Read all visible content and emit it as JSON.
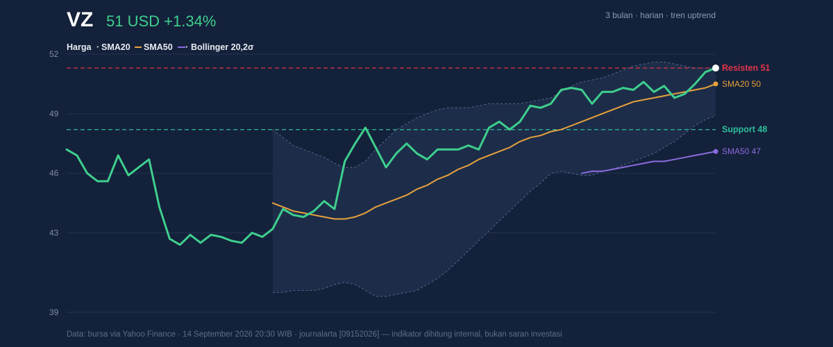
{
  "header": {
    "ticker": "VZ",
    "price_text": "51 USD +1.34%",
    "period": "3 bulan · harian · tren uptrend"
  },
  "legend": {
    "price": "Harga",
    "sma20": "SMA20",
    "sma50": "SMA50",
    "bollinger": "Bollinger 20,2σ"
  },
  "source": "Data: bursa via Yahoo Finance · 14 September 2026 20:30 WIB · journalarta [09152026] — indikator dihitung internal, bukan saran investasi",
  "colors": {
    "background": "#14213a",
    "price": "#3ecf8e",
    "sma20": "#e8a23d",
    "sma50": "#8b6be0",
    "resistance": "#e0344a",
    "support": "#2bbf9b",
    "band_fill": "#1e2e4a",
    "band_edge": "#56678a",
    "grid": "#223252"
  },
  "chart_data": {
    "type": "line",
    "x_index": [
      0,
      1,
      2,
      3,
      4,
      5,
      6,
      7,
      8,
      9,
      10,
      11,
      12,
      13,
      14,
      15,
      16,
      17,
      18,
      19,
      20,
      21,
      22,
      23,
      24,
      25,
      26,
      27,
      28,
      29,
      30,
      31,
      32,
      33,
      34,
      35,
      36,
      37,
      38,
      39,
      40,
      41,
      42,
      43,
      44,
      45,
      46,
      47,
      48,
      49,
      50,
      51,
      52,
      53,
      54,
      55,
      56,
      57,
      58,
      59,
      60,
      61,
      62,
      63
    ],
    "ylim": [
      39,
      52
    ],
    "yticks": [
      39,
      43,
      46,
      49,
      52
    ],
    "series": [
      {
        "name": "Harga",
        "values": [
          47.2,
          46.9,
          46.0,
          45.6,
          45.6,
          46.9,
          45.9,
          46.3,
          46.7,
          44.3,
          42.7,
          42.4,
          42.9,
          42.5,
          42.9,
          42.8,
          42.6,
          42.5,
          43.0,
          42.8,
          43.2,
          44.2,
          43.9,
          43.8,
          44.1,
          44.6,
          44.2,
          46.6,
          47.5,
          48.3,
          47.3,
          46.3,
          47.0,
          47.5,
          47.0,
          46.7,
          47.2,
          47.2,
          47.2,
          47.4,
          47.2,
          48.3,
          48.6,
          48.2,
          48.6,
          49.4,
          49.3,
          49.5,
          50.2,
          50.3,
          50.2,
          49.5,
          50.1,
          50.1,
          50.3,
          50.2,
          50.6,
          50.1,
          50.4,
          49.8,
          50.0,
          50.5,
          51.1,
          51.3
        ]
      },
      {
        "name": "SMA20",
        "values": [
          null,
          null,
          null,
          null,
          null,
          null,
          null,
          null,
          null,
          null,
          null,
          null,
          null,
          null,
          null,
          null,
          null,
          null,
          null,
          null,
          44.5,
          44.3,
          44.1,
          44.0,
          43.9,
          43.8,
          43.7,
          43.7,
          43.8,
          44.0,
          44.3,
          44.5,
          44.7,
          44.9,
          45.2,
          45.4,
          45.7,
          45.9,
          46.2,
          46.4,
          46.7,
          46.9,
          47.1,
          47.3,
          47.6,
          47.8,
          47.9,
          48.1,
          48.2,
          48.4,
          48.6,
          48.8,
          49.0,
          49.2,
          49.4,
          49.6,
          49.7,
          49.8,
          49.9,
          50.0,
          50.1,
          50.2,
          50.3,
          50.5
        ]
      },
      {
        "name": "SMA50",
        "values": [
          null,
          null,
          null,
          null,
          null,
          null,
          null,
          null,
          null,
          null,
          null,
          null,
          null,
          null,
          null,
          null,
          null,
          null,
          null,
          null,
          null,
          null,
          null,
          null,
          null,
          null,
          null,
          null,
          null,
          null,
          null,
          null,
          null,
          null,
          null,
          null,
          null,
          null,
          null,
          null,
          null,
          null,
          null,
          null,
          null,
          null,
          null,
          null,
          null,
          null,
          46.0,
          46.1,
          46.1,
          46.2,
          46.3,
          46.4,
          46.5,
          46.6,
          46.6,
          46.7,
          46.8,
          46.9,
          47.0,
          47.1
        ]
      },
      {
        "name": "Bollinger 20,2σ",
        "upper": [
          null,
          null,
          null,
          null,
          null,
          null,
          null,
          null,
          null,
          null,
          null,
          null,
          null,
          null,
          null,
          null,
          null,
          null,
          null,
          null,
          48.2,
          47.8,
          47.4,
          47.2,
          47.0,
          46.8,
          46.5,
          46.3,
          46.3,
          46.6,
          47.2,
          47.7,
          48.2,
          48.5,
          48.8,
          49.0,
          49.2,
          49.3,
          49.3,
          49.3,
          49.4,
          49.5,
          49.5,
          49.5,
          49.5,
          49.6,
          49.7,
          49.8,
          50.1,
          50.4,
          50.6,
          50.7,
          50.8,
          51.0,
          51.2,
          51.4,
          51.5,
          51.6,
          51.6,
          51.5,
          51.4,
          51.3,
          51.3,
          51.3
        ],
        "lower": [
          null,
          null,
          null,
          null,
          null,
          null,
          null,
          null,
          null,
          null,
          null,
          null,
          null,
          null,
          null,
          null,
          null,
          null,
          null,
          null,
          40.0,
          40.0,
          40.1,
          40.1,
          40.1,
          40.2,
          40.4,
          40.5,
          40.4,
          40.1,
          39.8,
          39.8,
          39.9,
          40.0,
          40.1,
          40.4,
          40.7,
          41.1,
          41.6,
          42.1,
          42.6,
          43.1,
          43.6,
          44.1,
          44.6,
          45.1,
          45.5,
          46.0,
          46.1,
          46.0,
          45.9,
          45.9,
          46.1,
          46.2,
          46.4,
          46.6,
          46.8,
          47.0,
          47.3,
          47.6,
          48.0,
          48.4,
          48.7,
          48.9
        ]
      }
    ],
    "levels": [
      {
        "name": "Resisten",
        "value": 51.3,
        "label": "Resisten 51",
        "color": "#e0344a"
      },
      {
        "name": "Support",
        "value": 48.2,
        "label": "Support 48",
        "color": "#2bbf9b"
      }
    ],
    "end_labels": [
      {
        "series": "SMA20",
        "label": "SMA20 50"
      },
      {
        "series": "SMA50",
        "label": "SMA50 47"
      }
    ],
    "grid": true,
    "legend_position": "top-left"
  }
}
